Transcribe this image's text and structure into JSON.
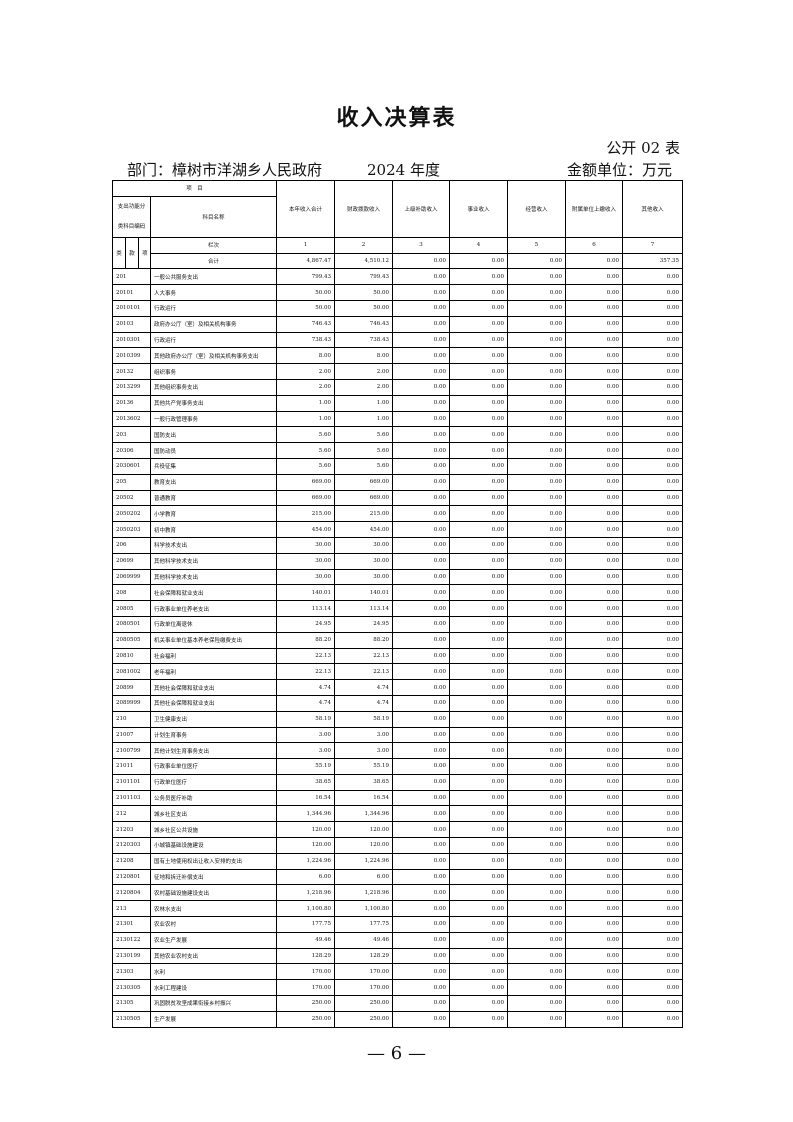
{
  "title": "收入决算表",
  "form_no": "公开 02 表",
  "department": "部门：樟树市洋湖乡人民政府",
  "year": "2024 年度",
  "unit": "金额单位：万元",
  "header": {
    "item": "项　目",
    "code_label_1": "支出功能分",
    "code_label_2": "类科目编码",
    "name_label": "科目名称",
    "lei": "类",
    "kuan": "款",
    "xiang": "项",
    "lanci": "栏次",
    "columns": [
      "本年收入合计",
      "财政拨款收入",
      "上级补助收入",
      "事业收入",
      "经营收入",
      "附属单位上缴收入",
      "其他收入"
    ],
    "column_numbers": [
      "1",
      "2",
      "3",
      "4",
      "5",
      "6",
      "7"
    ]
  },
  "total": {
    "label": "合计",
    "values": [
      "4,867.47",
      "4,510.12",
      "0.00",
      "0.00",
      "0.00",
      "0.00",
      "357.35"
    ]
  },
  "rows": [
    {
      "code": "201",
      "name": "一般公共服务支出",
      "v1": "799.43",
      "v2": "799.43"
    },
    {
      "code": "20101",
      "name": "人大事务",
      "v1": "50.00",
      "v2": "50.00"
    },
    {
      "code": "2010101",
      "name": "行政运行",
      "v1": "50.00",
      "v2": "50.00"
    },
    {
      "code": "20103",
      "name": "政府办公厅（室）及相关机构事务",
      "v1": "746.43",
      "v2": "746.43"
    },
    {
      "code": "2010301",
      "name": "行政运行",
      "v1": "738.43",
      "v2": "738.43"
    },
    {
      "code": "2010399",
      "name": "其他政府办公厅（室）及相关机构事务支出",
      "v1": "8.00",
      "v2": "8.00"
    },
    {
      "code": "20132",
      "name": "组织事务",
      "v1": "2.00",
      "v2": "2.00"
    },
    {
      "code": "2013299",
      "name": "其他组织事务支出",
      "v1": "2.00",
      "v2": "2.00"
    },
    {
      "code": "20136",
      "name": "其他共产党事务支出",
      "v1": "1.00",
      "v2": "1.00"
    },
    {
      "code": "2013602",
      "name": "一般行政管理事务",
      "v1": "1.00",
      "v2": "1.00"
    },
    {
      "code": "203",
      "name": "国防支出",
      "v1": "5.60",
      "v2": "5.60"
    },
    {
      "code": "20306",
      "name": "国防动员",
      "v1": "5.60",
      "v2": "5.60"
    },
    {
      "code": "2030601",
      "name": "兵役征集",
      "v1": "5.60",
      "v2": "5.60"
    },
    {
      "code": "205",
      "name": "教育支出",
      "v1": "669.00",
      "v2": "669.00"
    },
    {
      "code": "20502",
      "name": "普通教育",
      "v1": "669.00",
      "v2": "669.00"
    },
    {
      "code": "2050202",
      "name": "小学教育",
      "v1": "215.00",
      "v2": "215.00"
    },
    {
      "code": "2050203",
      "name": "初中教育",
      "v1": "454.00",
      "v2": "454.00"
    },
    {
      "code": "206",
      "name": "科学技术支出",
      "v1": "30.00",
      "v2": "30.00"
    },
    {
      "code": "20699",
      "name": "其他科学技术支出",
      "v1": "30.00",
      "v2": "30.00"
    },
    {
      "code": "2069999",
      "name": "其他科学技术支出",
      "v1": "30.00",
      "v2": "30.00"
    },
    {
      "code": "208",
      "name": "社会保障和就业支出",
      "v1": "140.01",
      "v2": "140.01"
    },
    {
      "code": "20805",
      "name": "行政事业单位养老支出",
      "v1": "113.14",
      "v2": "113.14"
    },
    {
      "code": "2080501",
      "name": "行政单位离退休",
      "v1": "24.95",
      "v2": "24.95"
    },
    {
      "code": "2080505",
      "name": "机关事业单位基本养老保险缴费支出",
      "v1": "88.20",
      "v2": "88.20"
    },
    {
      "code": "20810",
      "name": "社会福利",
      "v1": "22.13",
      "v2": "22.13"
    },
    {
      "code": "2081002",
      "name": "老年福利",
      "v1": "22.13",
      "v2": "22.13"
    },
    {
      "code": "20899",
      "name": "其他社会保障和就业支出",
      "v1": "4.74",
      "v2": "4.74"
    },
    {
      "code": "2089999",
      "name": "其他社会保障和就业支出",
      "v1": "4.74",
      "v2": "4.74"
    },
    {
      "code": "210",
      "name": "卫生健康支出",
      "v1": "58.19",
      "v2": "58.19"
    },
    {
      "code": "21007",
      "name": "计划生育事务",
      "v1": "3.00",
      "v2": "3.00"
    },
    {
      "code": "2100799",
      "name": "其他计划生育事务支出",
      "v1": "3.00",
      "v2": "3.00"
    },
    {
      "code": "21011",
      "name": "行政事业单位医疗",
      "v1": "55.19",
      "v2": "55.19"
    },
    {
      "code": "2101101",
      "name": "行政单位医疗",
      "v1": "38.65",
      "v2": "38.65"
    },
    {
      "code": "2101103",
      "name": "公务员医疗补助",
      "v1": "16.54",
      "v2": "16.54"
    },
    {
      "code": "212",
      "name": "城乡社区支出",
      "v1": "1,344.96",
      "v2": "1,344.96"
    },
    {
      "code": "21203",
      "name": "城乡社区公共设施",
      "v1": "120.00",
      "v2": "120.00"
    },
    {
      "code": "2120303",
      "name": "小城镇基础设施建设",
      "v1": "120.00",
      "v2": "120.00"
    },
    {
      "code": "21208",
      "name": "国有土地使用权出让收入安排的支出",
      "v1": "1,224.96",
      "v2": "1,224.96"
    },
    {
      "code": "2120801",
      "name": "征地和拆迁补偿支出",
      "v1": "6.00",
      "v2": "6.00"
    },
    {
      "code": "2120804",
      "name": "农村基础设施建设支出",
      "v1": "1,218.96",
      "v2": "1,218.96"
    },
    {
      "code": "213",
      "name": "农林水支出",
      "v1": "1,100.80",
      "v2": "1,100.80"
    },
    {
      "code": "21301",
      "name": "农业农村",
      "v1": "177.75",
      "v2": "177.75"
    },
    {
      "code": "2130122",
      "name": "农业生产发展",
      "v1": "49.46",
      "v2": "49.46"
    },
    {
      "code": "2130199",
      "name": "其他农业农村支出",
      "v1": "128.29",
      "v2": "128.29"
    },
    {
      "code": "21303",
      "name": "水利",
      "v1": "170.00",
      "v2": "170.00"
    },
    {
      "code": "2130305",
      "name": "水利工程建设",
      "v1": "170.00",
      "v2": "170.00"
    },
    {
      "code": "21305",
      "name": "巩固脱贫攻坚成果衔接乡村振兴",
      "v1": "250.00",
      "v2": "250.00"
    },
    {
      "code": "2130505",
      "name": "生产发展",
      "v1": "250.00",
      "v2": "250.00"
    }
  ],
  "zero_value": "0.00",
  "page_number": "— 6 —"
}
